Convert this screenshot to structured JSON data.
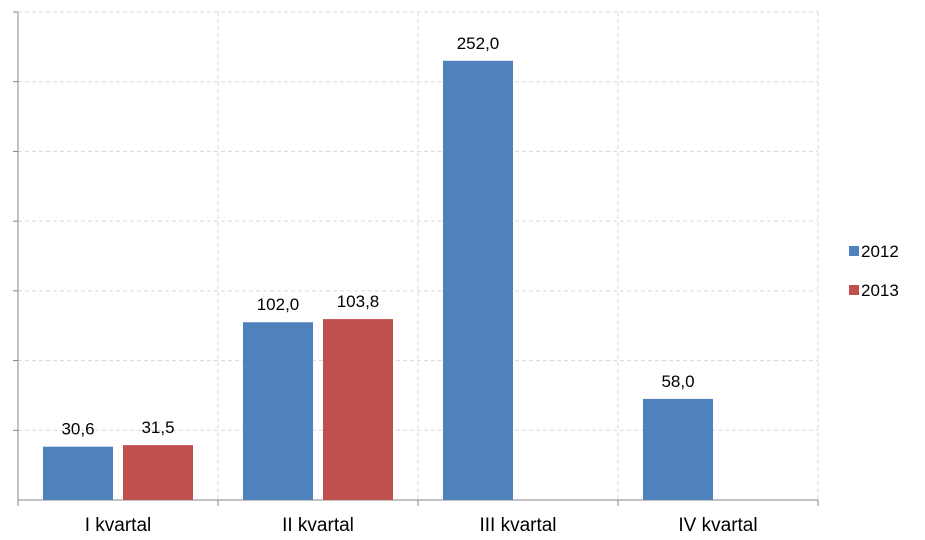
{
  "chart_data": {
    "type": "bar",
    "title": "",
    "xlabel": "",
    "ylabel": "",
    "categories": [
      "I kvartal",
      "II kvartal",
      "III kvartal",
      "IV kvartal"
    ],
    "series": [
      {
        "name": "2012",
        "color": "#4F81BD",
        "values": [
          30.6,
          102.0,
          252.0,
          58.0
        ]
      },
      {
        "name": "2013",
        "color": "#C0504D",
        "values": [
          31.5,
          103.8,
          null,
          null
        ]
      }
    ],
    "data_labels": [
      [
        "30,6",
        "102,0",
        "252,0",
        "58,0"
      ],
      [
        "31,5",
        "103,8",
        null,
        null
      ]
    ],
    "ylim": [
      0,
      280
    ],
    "y_tick_step": 40,
    "y_tick_labels_shown": false,
    "grid": true,
    "grid_style": "dashed",
    "legend_position": "right"
  }
}
